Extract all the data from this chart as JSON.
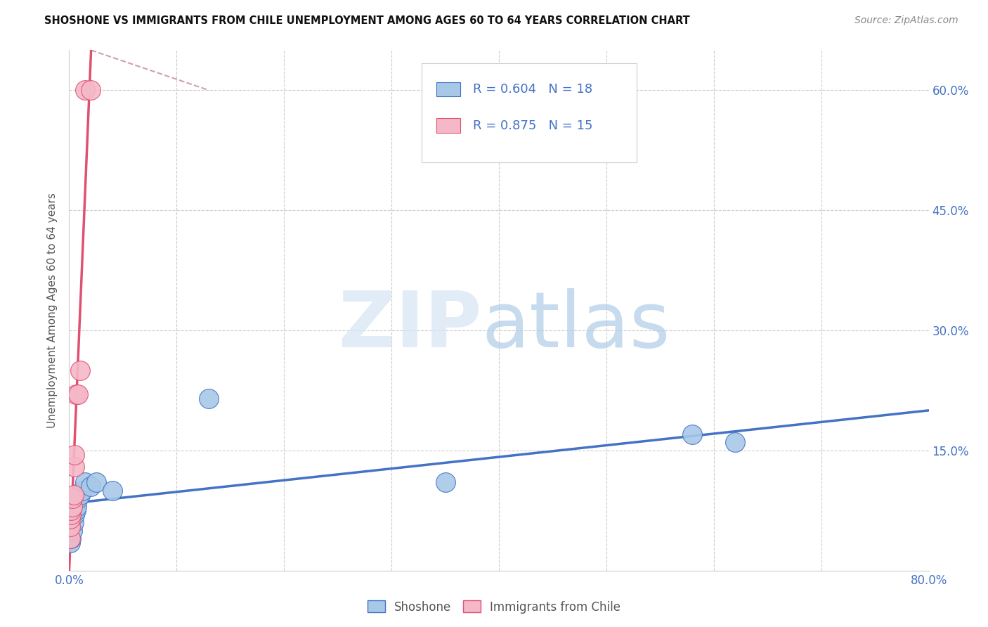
{
  "title": "SHOSHONE VS IMMIGRANTS FROM CHILE UNEMPLOYMENT AMONG AGES 60 TO 64 YEARS CORRELATION CHART",
  "source": "Source: ZipAtlas.com",
  "ylabel": "Unemployment Among Ages 60 to 64 years",
  "xlim": [
    0.0,
    0.8
  ],
  "ylim": [
    0.0,
    0.65
  ],
  "xticks": [
    0.0,
    0.1,
    0.2,
    0.3,
    0.4,
    0.5,
    0.6,
    0.7,
    0.8
  ],
  "xticklabels": [
    "0.0%",
    "",
    "",
    "",
    "",
    "",
    "",
    "",
    "80.0%"
  ],
  "yticks": [
    0.0,
    0.15,
    0.3,
    0.45,
    0.6
  ],
  "yticklabels": [
    "",
    "15.0%",
    "30.0%",
    "45.0%",
    "60.0%"
  ],
  "shoshone_R": 0.604,
  "shoshone_N": 18,
  "chile_R": 0.875,
  "chile_N": 15,
  "shoshone_color": "#a8c8e8",
  "chile_color": "#f4b8c8",
  "trend_shoshone_color": "#4472c4",
  "trend_chile_color": "#e05070",
  "trend_chile_dashed_color": "#d0a0b0",
  "shoshone_x": [
    0.001,
    0.002,
    0.003,
    0.004,
    0.005,
    0.006,
    0.007,
    0.008,
    0.01,
    0.012,
    0.015,
    0.02,
    0.025,
    0.04,
    0.13,
    0.35,
    0.58,
    0.62
  ],
  "shoshone_y": [
    0.035,
    0.04,
    0.05,
    0.06,
    0.07,
    0.075,
    0.08,
    0.09,
    0.095,
    0.1,
    0.11,
    0.105,
    0.11,
    0.1,
    0.215,
    0.11,
    0.17,
    0.16
  ],
  "chile_x": [
    0.001,
    0.001,
    0.001,
    0.002,
    0.002,
    0.003,
    0.003,
    0.004,
    0.005,
    0.005,
    0.006,
    0.008,
    0.01,
    0.015,
    0.02
  ],
  "chile_y": [
    0.04,
    0.055,
    0.065,
    0.07,
    0.075,
    0.08,
    0.09,
    0.095,
    0.13,
    0.145,
    0.22,
    0.22,
    0.25,
    0.6,
    0.6
  ],
  "watermark_zip": "ZIP",
  "watermark_atlas": "atlas",
  "background_color": "#ffffff",
  "grid_color": "#cccccc",
  "legend_text_color": "#4472c4",
  "axis_label_color": "#4472c4"
}
